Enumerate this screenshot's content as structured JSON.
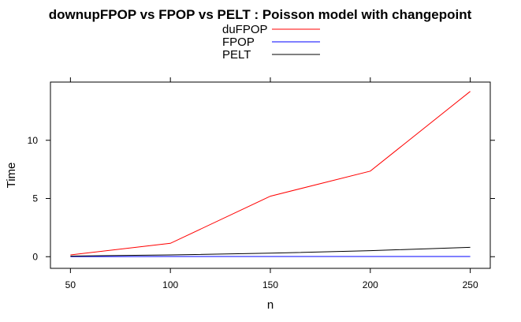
{
  "chart_data": {
    "type": "line",
    "title": "downupFPOP vs FPOP vs PELT : Poisson model with changepoint",
    "xlabel": "n",
    "ylabel": "Time",
    "x": [
      50,
      100,
      150,
      200,
      250
    ],
    "xlim": [
      40,
      260
    ],
    "ylim": [
      -1,
      15
    ],
    "xticks": [
      50,
      100,
      150,
      200,
      250
    ],
    "yticks": [
      0,
      5,
      10
    ],
    "grid": false,
    "legend_position": "top-center",
    "series": [
      {
        "name": "duFPOP",
        "color": "#ff0000",
        "values": [
          0.15,
          1.15,
          5.2,
          7.35,
          14.2
        ]
      },
      {
        "name": "FPOP",
        "color": "#0000ff",
        "values": [
          0.01,
          0.02,
          0.02,
          0.02,
          0.02
        ]
      },
      {
        "name": "PELT",
        "color": "#000000",
        "values": [
          0.05,
          0.15,
          0.3,
          0.52,
          0.8
        ]
      }
    ]
  }
}
